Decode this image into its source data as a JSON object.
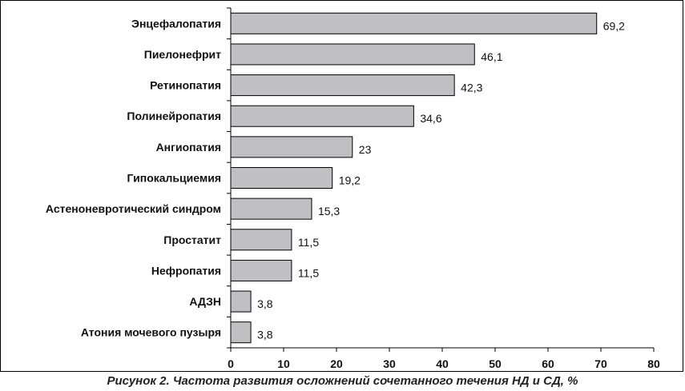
{
  "caption": "Рисунок 2. Частота развития осложнений сочетанного течения НД и СД, %",
  "chart_data": {
    "type": "bar",
    "orientation": "horizontal",
    "categories": [
      "Энцефалопатия",
      "Пиелонефрит",
      "Ретинопатия",
      "Полинейропатия",
      "Ангиопатия",
      "Гипокальциемия",
      "Астеноневротический синдром",
      "Простатит",
      "Нефропатия",
      "АДЗН",
      "Атония мочевого пузыря"
    ],
    "values": [
      69.2,
      46.1,
      42.3,
      34.6,
      23,
      19.2,
      15.3,
      11.5,
      11.5,
      3.8,
      3.8
    ],
    "value_labels": [
      "69,2",
      "46,1",
      "42,3",
      "34,6",
      "23",
      "19,2",
      "15,3",
      "11,5",
      "11,5",
      "3,8",
      "3,8"
    ],
    "xlim": [
      0,
      80
    ],
    "xticks": [
      0,
      10,
      20,
      30,
      40,
      50,
      60,
      70,
      80
    ],
    "bar_color": "#c0c0c4",
    "bar_edge_color": "#000000",
    "grid": false,
    "legend": "none"
  }
}
